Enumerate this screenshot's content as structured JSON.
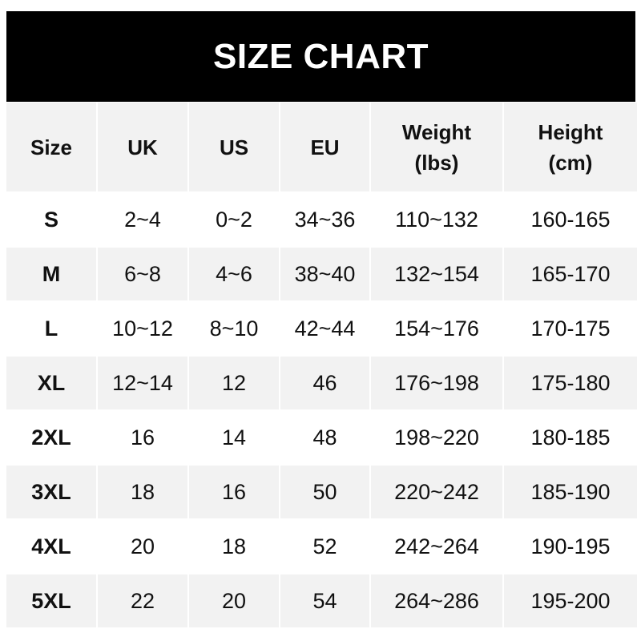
{
  "title": "SIZE CHART",
  "columns": [
    "Size",
    "UK",
    "US",
    "EU",
    "Weight\n(lbs)",
    "Height\n(cm)"
  ],
  "rows": [
    [
      "S",
      "2~4",
      "0~2",
      "34~36",
      "110~132",
      "160-165"
    ],
    [
      "M",
      "6~8",
      "4~6",
      "38~40",
      "132~154",
      "165-170"
    ],
    [
      "L",
      "10~12",
      "8~10",
      "42~44",
      "154~176",
      "170-175"
    ],
    [
      "XL",
      "12~14",
      "12",
      "46",
      "176~198",
      "175-180"
    ],
    [
      "2XL",
      "16",
      "14",
      "48",
      "198~220",
      "180-185"
    ],
    [
      "3XL",
      "18",
      "16",
      "50",
      "220~242",
      "185-190"
    ],
    [
      "4XL",
      "20",
      "18",
      "52",
      "242~264",
      "190-195"
    ],
    [
      "5XL",
      "22",
      "20",
      "54",
      "264~286",
      "195-200"
    ]
  ],
  "colors": {
    "header_bg": "#000000",
    "stripe": "#f2f2f2",
    "text": "#111111"
  }
}
